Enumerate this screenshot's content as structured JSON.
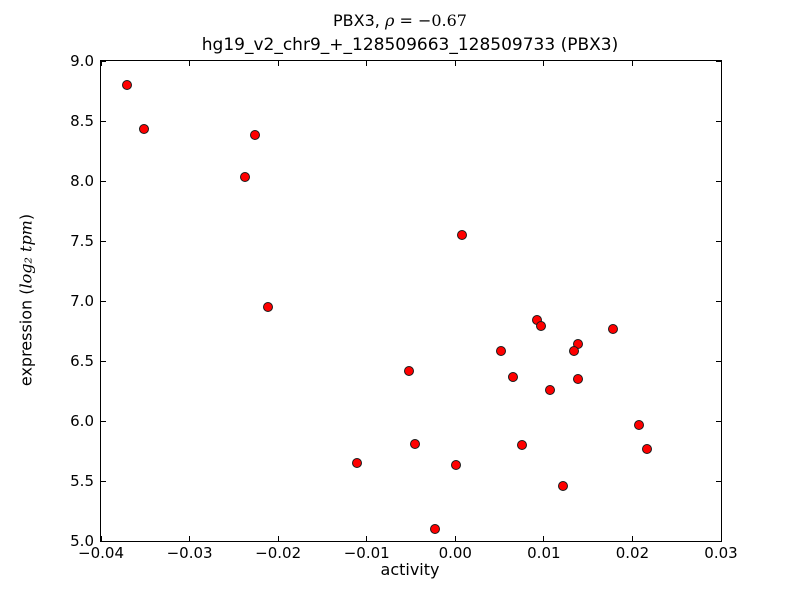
{
  "figure": {
    "suptitle_prefix": "PBX3, ",
    "suptitle_math_symbol": "ρ",
    "suptitle_math_value": " = −0.67",
    "axes_title": "hg19_v2_chr9_+_128509663_128509733 (PBX3)",
    "xlabel": "activity",
    "ylabel_prefix": "expression (",
    "ylabel_math": "log₂ tpm",
    "ylabel_suffix": ")",
    "background_color": "#ffffff",
    "marker_color": "#ff0000",
    "marker_edge_color": "#1a1a1a"
  },
  "chart_data": {
    "type": "scatter",
    "title": "PBX3, ρ = −0.67",
    "subtitle": "hg19_v2_chr9_+_128509663_128509733 (PBX3)",
    "xlabel": "activity",
    "ylabel": "expression (log₂ tpm)",
    "xlim": [
      -0.04,
      0.03
    ],
    "ylim": [
      5.0,
      9.0
    ],
    "grid": false,
    "legend": false,
    "xtick_values": [
      -0.04,
      -0.03,
      -0.02,
      -0.01,
      0.0,
      0.01,
      0.02,
      0.03
    ],
    "xtick_labels": [
      "−0.04",
      "−0.03",
      "−0.02",
      "−0.01",
      "0.00",
      "0.01",
      "0.02",
      "0.03"
    ],
    "ytick_values": [
      5.0,
      5.5,
      6.0,
      6.5,
      7.0,
      7.5,
      8.0,
      8.5,
      9.0
    ],
    "ytick_labels": [
      "5.0",
      "5.5",
      "6.0",
      "6.5",
      "7.0",
      "7.5",
      "8.0",
      "8.5",
      "9.0"
    ],
    "x": [
      -0.0371,
      -0.0351,
      -0.0237,
      -0.0226,
      -0.0211,
      0.0008,
      -0.0052,
      0.0092,
      0.0097,
      0.0178,
      0.0138,
      0.0134,
      0.0052,
      0.0065,
      0.0139,
      0.0107,
      0.0207,
      -0.0045,
      0.0075,
      0.0217,
      -0.0111,
      0.0001,
      0.0122,
      -0.0023
    ],
    "y": [
      8.8,
      8.43,
      8.03,
      8.38,
      6.95,
      7.55,
      6.42,
      6.84,
      6.79,
      6.77,
      6.64,
      6.58,
      6.58,
      6.37,
      6.35,
      6.26,
      5.97,
      5.81,
      5.8,
      5.77,
      5.65,
      5.63,
      5.46,
      5.1
    ]
  }
}
